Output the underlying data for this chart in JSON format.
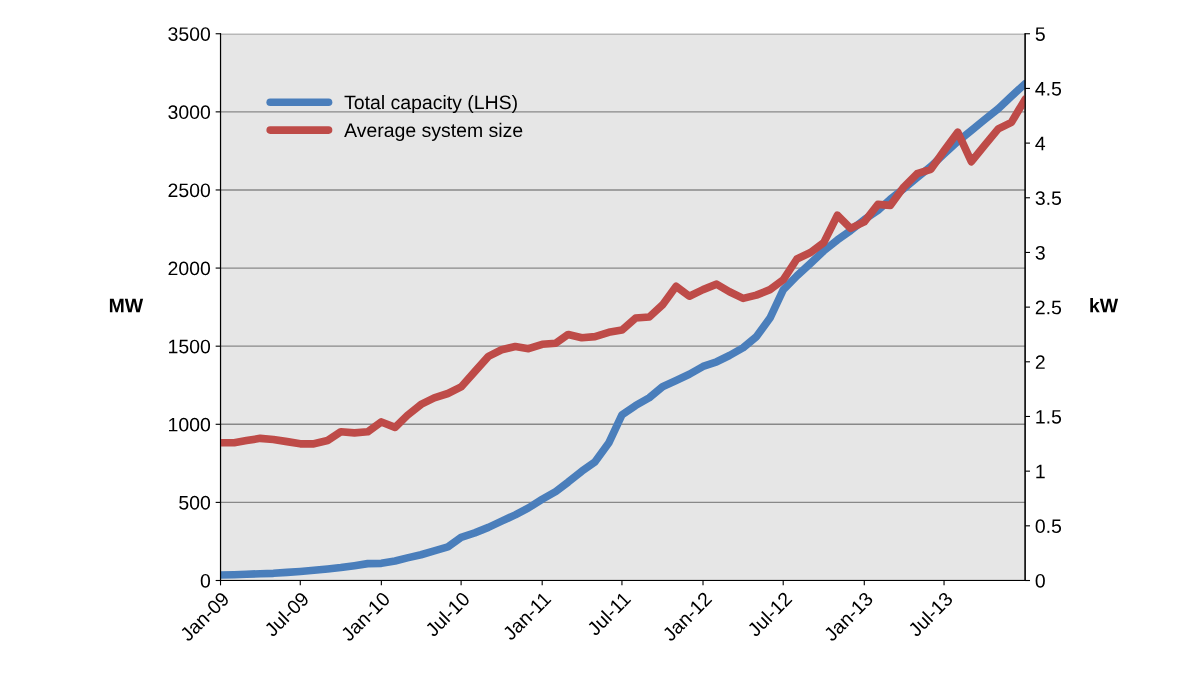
{
  "chart_data": {
    "type": "line",
    "ylabel": "MW",
    "y2label": "kW",
    "x": [
      "2009-01",
      "2009-02",
      "2009-03",
      "2009-04",
      "2009-05",
      "2009-06",
      "2009-07",
      "2009-08",
      "2009-09",
      "2009-10",
      "2009-11",
      "2009-12",
      "2010-01",
      "2010-02",
      "2010-03",
      "2010-04",
      "2010-05",
      "2010-06",
      "2010-07",
      "2010-08",
      "2010-09",
      "2010-10",
      "2010-11",
      "2010-12",
      "2011-01",
      "2011-02",
      "2011-03",
      "2011-04",
      "2011-05",
      "2011-06",
      "2011-07",
      "2011-08",
      "2011-09",
      "2011-10",
      "2011-11",
      "2011-12",
      "2012-01",
      "2012-02",
      "2012-03",
      "2012-04",
      "2012-05",
      "2012-06",
      "2012-07",
      "2012-08",
      "2012-09",
      "2012-10",
      "2012-11",
      "2012-12",
      "2013-01",
      "2013-02",
      "2013-03",
      "2013-04",
      "2013-05",
      "2013-06",
      "2013-07",
      "2013-08",
      "2013-09",
      "2013-10",
      "2013-11",
      "2013-12",
      "2014-01"
    ],
    "series": [
      {
        "name": "Total capacity (LHS)",
        "color": "#4a7ebb",
        "values": [
          35,
          37,
          40,
          43,
          46,
          52,
          58,
          66,
          74,
          83,
          95,
          108,
          110,
          125,
          145,
          165,
          190,
          215,
          276,
          305,
          340,
          380,
          420,
          465,
          520,
          570,
          630,
          700,
          760,
          880,
          1060,
          1120,
          1170,
          1240,
          1280,
          1320,
          1370,
          1400,
          1440,
          1490,
          1560,
          1680,
          1860,
          1950,
          2030,
          2110,
          2180,
          2240,
          2310,
          2370,
          2440,
          2510,
          2580,
          2650,
          2730,
          2810,
          2880,
          2950,
          3020,
          3100,
          3180
        ]
      },
      {
        "name": "Average system size",
        "color": "#be4b48",
        "axis": "y2",
        "values": [
          1.26,
          1.26,
          1.28,
          1.3,
          1.29,
          1.27,
          1.25,
          1.25,
          1.28,
          1.36,
          1.35,
          1.36,
          1.45,
          1.4,
          1.51,
          1.61,
          1.67,
          1.71,
          1.77,
          1.91,
          2.05,
          2.11,
          2.14,
          2.12,
          2.16,
          2.17,
          2.25,
          2.22,
          2.23,
          2.27,
          2.29,
          2.4,
          2.41,
          2.52,
          2.69,
          2.6,
          2.66,
          2.71,
          2.64,
          2.58,
          2.61,
          2.66,
          2.75,
          2.94,
          3.0,
          3.09,
          3.34,
          3.22,
          3.28,
          3.44,
          3.43,
          3.6,
          3.72,
          3.76,
          3.93,
          4.1,
          3.83,
          3.98,
          4.13,
          4.19,
          4.4
        ]
      }
    ],
    "xlim": [
      "2009-01",
      "2014-01"
    ],
    "xticks": [
      {
        "value": "2009-01",
        "label": "Jan-09"
      },
      {
        "value": "2009-07",
        "label": "Jul-09"
      },
      {
        "value": "2010-01",
        "label": "Jan-10"
      },
      {
        "value": "2010-07",
        "label": "Jul-10"
      },
      {
        "value": "2011-01",
        "label": "Jan-11"
      },
      {
        "value": "2011-07",
        "label": "Jul-11"
      },
      {
        "value": "2012-01",
        "label": "Jan-12"
      },
      {
        "value": "2012-07",
        "label": "Jul-12"
      },
      {
        "value": "2013-01",
        "label": "Jan-13"
      },
      {
        "value": "2013-07",
        "label": "Jul-13"
      }
    ],
    "ylim": [
      0,
      3500
    ],
    "yticks": [
      0,
      500,
      1000,
      1500,
      2000,
      2500,
      3000,
      3500
    ],
    "y2lim": [
      0,
      5
    ],
    "y2ticks": [
      0,
      0.5,
      1,
      1.5,
      2,
      2.5,
      3,
      3.5,
      4,
      4.5,
      5
    ],
    "grid": "y",
    "legend": "top left",
    "marker": "none",
    "line_style": "solid"
  }
}
